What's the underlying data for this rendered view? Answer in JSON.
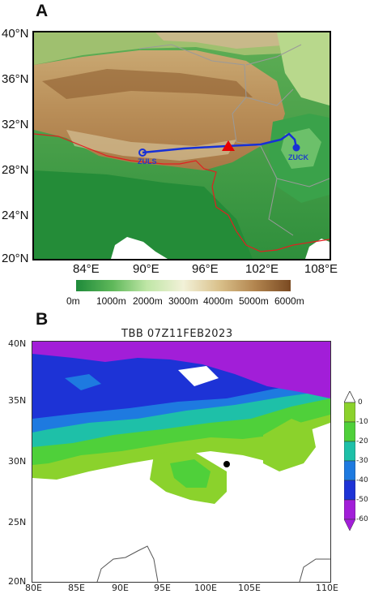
{
  "panel_a": {
    "letter": "A",
    "lat_labels": [
      "40°N",
      "36°N",
      "32°N",
      "28°N",
      "24°N",
      "20°N"
    ],
    "lon_labels": [
      "84°E",
      "90°E",
      "96°E",
      "102°E",
      "108°E"
    ],
    "stations": [
      {
        "name": "ZULS",
        "color": "#1f3fc7"
      },
      {
        "name": "ZUCK",
        "color": "#1f3fc7"
      }
    ],
    "marker_color": "#e60000",
    "route_color": "#1730d6",
    "border_color": "#e02020",
    "elevation_colorbar": {
      "labels": [
        "0m",
        "1000m",
        "2000m",
        "3000m",
        "4000m",
        "5000m",
        "6000m"
      ],
      "colors": [
        "#1e8a3a",
        "#5fb85a",
        "#bfe6a6",
        "#f2f1d8",
        "#d9c08a",
        "#b38650",
        "#7a4a22"
      ]
    }
  },
  "panel_b": {
    "letter": "B",
    "title": "TBB 07Z11FEB2023",
    "lat_labels": [
      "40N",
      "35N",
      "30N",
      "25N",
      "20N"
    ],
    "lon_labels": [
      "80E",
      "85E",
      "90E",
      "95E",
      "100E",
      "105E",
      "110E"
    ],
    "colorbar": {
      "labels": [
        "0",
        "-10",
        "-20",
        "-30",
        "-40",
        "-50",
        "-60"
      ],
      "colors": [
        "#8bd22c",
        "#4fd03a",
        "#1ec0a8",
        "#1e7ae0",
        "#1d33d6",
        "#a21ed8"
      ]
    },
    "point_color": "#000000"
  }
}
